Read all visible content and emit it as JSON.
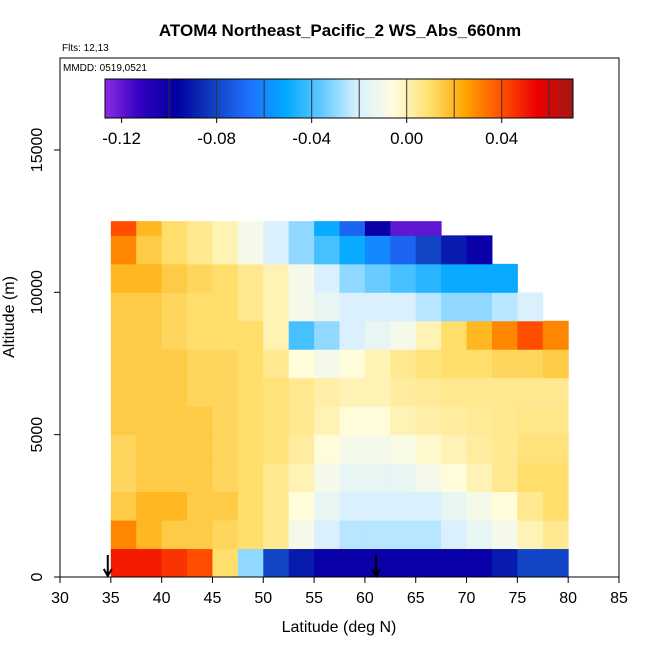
{
  "chart_data": {
    "type": "heatmap",
    "title": "ATOM4 Northeast_Pacific_2 WS_Abs_660nm",
    "annotations": [
      "Flts: 12,13",
      "MMDD: 0519,0521"
    ],
    "x_label": "Latitude (deg N)",
    "y_label": "Altitude (m)",
    "xlim": [
      30,
      85
    ],
    "ylim": [
      0,
      18230
    ],
    "xticks": [
      30,
      35,
      40,
      45,
      50,
      55,
      60,
      65,
      70,
      75,
      80,
      85
    ],
    "yticks": [
      0,
      5000,
      10000,
      15000
    ],
    "x_edges": [
      35,
      37.5,
      40,
      42.5,
      45,
      47.5,
      50,
      52.5,
      55,
      57.5,
      60,
      62.5,
      65,
      67.5,
      70,
      72.5,
      75,
      77.5,
      80
    ],
    "y_edges": [
      0,
      1000,
      2000,
      3000,
      4000,
      5000,
      6000,
      7000,
      8000,
      9000,
      10000,
      11000,
      12000,
      12500
    ],
    "z": [
      [
        0.05,
        0.05,
        0.045,
        0.04,
        0.01,
        -0.03,
        -0.08,
        -0.09,
        -0.1,
        -0.1,
        -0.1,
        -0.1,
        -0.1,
        -0.1,
        -0.1,
        -0.09,
        -0.08,
        -0.08
      ],
      [
        0.03,
        0.02,
        0.015,
        0.015,
        0.012,
        0.01,
        0.005,
        -0.01,
        -0.02,
        -0.025,
        -0.025,
        -0.025,
        -0.025,
        -0.02,
        -0.015,
        -0.01,
        0.0,
        0.005
      ],
      [
        0.015,
        0.02,
        0.02,
        0.015,
        0.015,
        0.01,
        0.005,
        -0.005,
        -0.015,
        -0.02,
        -0.02,
        -0.02,
        -0.02,
        -0.015,
        -0.01,
        -0.005,
        0.005,
        0.01
      ],
      [
        0.012,
        0.015,
        0.015,
        0.015,
        0.012,
        0.01,
        0.005,
        0.0,
        -0.01,
        -0.015,
        -0.015,
        -0.015,
        -0.01,
        -0.005,
        0.0,
        0.005,
        0.01,
        0.01
      ],
      [
        0.012,
        0.015,
        0.015,
        0.015,
        0.012,
        0.01,
        0.008,
        0.003,
        -0.005,
        -0.01,
        -0.01,
        -0.008,
        -0.003,
        0.0,
        0.003,
        0.005,
        0.008,
        0.008
      ],
      [
        0.015,
        0.015,
        0.015,
        0.015,
        0.012,
        0.01,
        0.008,
        0.005,
        0.0,
        -0.005,
        -0.005,
        0.0,
        0.002,
        0.003,
        0.004,
        0.005,
        0.006,
        0.006
      ],
      [
        0.015,
        0.015,
        0.015,
        0.012,
        0.012,
        0.01,
        0.008,
        0.005,
        0.002,
        0.0,
        0.0,
        0.003,
        0.004,
        0.005,
        0.005,
        0.005,
        0.005,
        0.005
      ],
      [
        0.015,
        0.015,
        0.015,
        0.012,
        0.012,
        0.01,
        0.005,
        -0.005,
        -0.01,
        -0.005,
        0.0,
        0.005,
        0.008,
        0.01,
        0.01,
        0.012,
        0.012,
        0.015
      ],
      [
        0.015,
        0.015,
        0.012,
        0.01,
        0.01,
        0.01,
        0.0,
        -0.04,
        -0.03,
        -0.02,
        -0.015,
        -0.01,
        0.0,
        0.01,
        0.02,
        0.03,
        0.04,
        0.03
      ],
      [
        0.015,
        0.015,
        0.012,
        0.01,
        0.01,
        0.005,
        0.0,
        -0.01,
        -0.015,
        -0.02,
        -0.02,
        -0.02,
        -0.025,
        -0.03,
        -0.03,
        -0.025,
        -0.02,
        null
      ],
      [
        0.02,
        0.02,
        0.015,
        0.012,
        0.01,
        0.005,
        0.0,
        -0.01,
        -0.02,
        -0.03,
        -0.035,
        -0.04,
        -0.045,
        -0.05,
        -0.05,
        -0.05,
        null,
        null
      ],
      [
        0.03,
        0.015,
        0.01,
        0.005,
        0.0,
        -0.01,
        -0.02,
        -0.03,
        -0.04,
        -0.05,
        -0.06,
        -0.07,
        -0.08,
        -0.09,
        -0.1,
        null,
        null,
        null
      ],
      [
        0.04,
        0.02,
        0.01,
        0.005,
        0.0,
        -0.01,
        -0.02,
        -0.03,
        -0.05,
        -0.07,
        -0.1,
        -0.12,
        -0.12,
        null,
        null,
        null,
        null,
        null
      ]
    ],
    "zlim": [
      -0.127,
      0.07
    ],
    "colorbar_colors": [
      "#8a2be2",
      "#3000c0",
      "#0000a0",
      "#1040c0",
      "#2070ff",
      "#00a8ff",
      "#60c8ff",
      "#d8f0ff",
      "#fffde0",
      "#ffe070",
      "#ffa500",
      "#ff5000",
      "#ee0000",
      "#a01818"
    ],
    "colorbar_ticks": [
      -0.12,
      -0.08,
      -0.04,
      {
        "value": 0,
        "label": "0.00"
      },
      0.04
    ],
    "colorbar_breaks": [
      -0.1,
      -0.08,
      -0.06,
      -0.04,
      -0.02,
      0,
      0.02,
      0.04,
      0.06
    ],
    "arrows": [
      34.7,
      61.1
    ]
  }
}
